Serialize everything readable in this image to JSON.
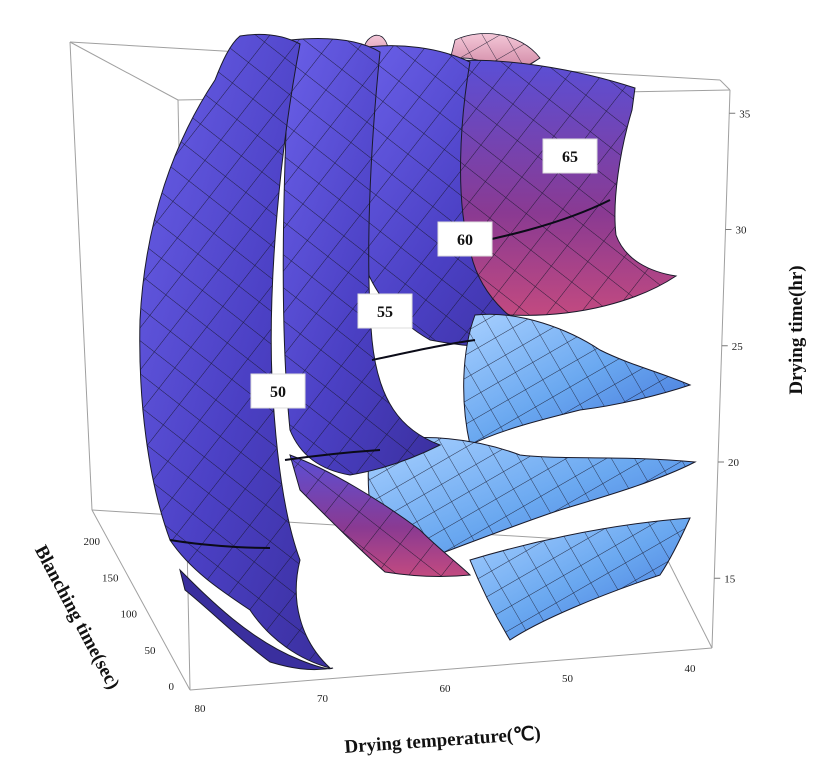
{
  "chart_data": {
    "type": "surface3d",
    "xlabel": "Drying temperature(℃)",
    "ylabel": "Blanching time(sec)",
    "zlabel": "Drying time(hr)",
    "x_ticks": [
      "80",
      "70",
      "60",
      "50",
      "40"
    ],
    "y_ticks": [
      "0",
      "50",
      "100",
      "150",
      "200"
    ],
    "z_ticks": [
      "15",
      "20",
      "25",
      "30",
      "35"
    ],
    "xlim": [
      40,
      80
    ],
    "ylim": [
      0,
      200
    ],
    "zlim": [
      12,
      36
    ],
    "surface_labels": [
      {
        "label": "50",
        "value": 50
      },
      {
        "label": "55",
        "value": 55
      },
      {
        "label": "60",
        "value": 60
      },
      {
        "label": "65",
        "value": 65
      }
    ],
    "colors": {
      "surface_main": "#5a4fd6",
      "surface_dark": "#3a2f9e",
      "surface_magenta": "#a8387a",
      "surface_light": "#6aa8f0",
      "surface_pink": "#e8a0b8",
      "mesh": "#1a1a2a",
      "box": "#9a9a9a"
    },
    "grid": false
  }
}
